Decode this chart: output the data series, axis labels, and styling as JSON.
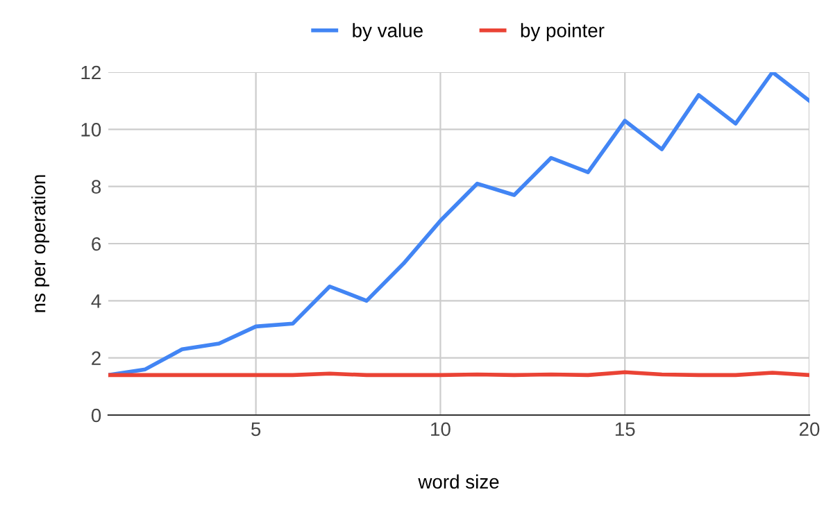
{
  "chart_data": {
    "type": "line",
    "xlabel": "word size",
    "ylabel": "ns per operation",
    "x": [
      1,
      2,
      3,
      4,
      5,
      6,
      7,
      8,
      9,
      10,
      11,
      12,
      13,
      14,
      15,
      16,
      17,
      18,
      19,
      20
    ],
    "series": [
      {
        "name": "by value",
        "color": "#4285f4",
        "values": [
          1.4,
          1.6,
          2.3,
          2.5,
          3.1,
          3.2,
          4.5,
          4.0,
          5.3,
          6.8,
          8.1,
          7.7,
          9.0,
          8.5,
          10.3,
          9.3,
          11.2,
          10.2,
          12.0,
          11.0
        ]
      },
      {
        "name": "by pointer",
        "color": "#ea4335",
        "values": [
          1.4,
          1.4,
          1.4,
          1.4,
          1.4,
          1.4,
          1.45,
          1.4,
          1.4,
          1.4,
          1.42,
          1.4,
          1.42,
          1.4,
          1.5,
          1.42,
          1.4,
          1.4,
          1.48,
          1.4
        ]
      }
    ],
    "xlim": [
      1,
      20
    ],
    "xticks": [
      5,
      10,
      15,
      20
    ],
    "ylim": [
      0,
      12
    ],
    "yticks": [
      0,
      2,
      4,
      6,
      8,
      10,
      12
    ],
    "grid": true,
    "legend": "top",
    "marker": "none",
    "line_style": "solid"
  }
}
